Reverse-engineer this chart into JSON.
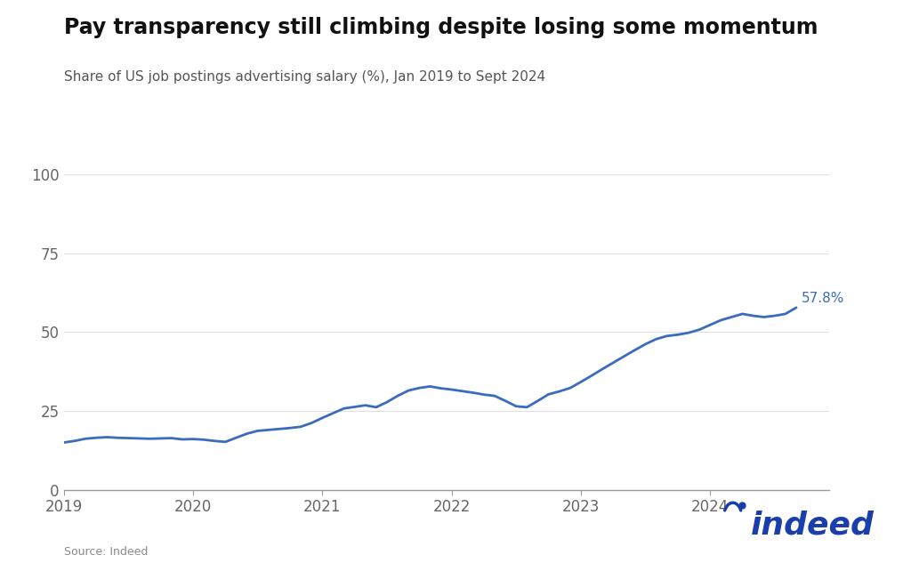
{
  "title": "Pay transparency still climbing despite losing some momentum",
  "subtitle": "Share of US job postings advertising salary (%), Jan 2019 to Sept 2024",
  "source": "Source: Indeed",
  "line_color": "#3a6bbf",
  "bg_color": "#ffffff",
  "annotation_label": "57.8%",
  "annotation_color": "#3a6bbf",
  "xlim_start": 2019.0,
  "xlim_end": 2024.92,
  "ylim": [
    0,
    100
  ],
  "yticks": [
    0,
    25,
    50,
    75,
    100
  ],
  "xticks": [
    2019,
    2020,
    2021,
    2022,
    2023,
    2024
  ],
  "tick_color": "#666666",
  "spine_color": "#999999",
  "grid_color": "#e0e0e0",
  "data": [
    [
      2019.0,
      15.0
    ],
    [
      2019.083,
      15.5
    ],
    [
      2019.167,
      16.2
    ],
    [
      2019.25,
      16.5
    ],
    [
      2019.333,
      16.7
    ],
    [
      2019.417,
      16.5
    ],
    [
      2019.5,
      16.4
    ],
    [
      2019.583,
      16.3
    ],
    [
      2019.667,
      16.2
    ],
    [
      2019.75,
      16.3
    ],
    [
      2019.833,
      16.4
    ],
    [
      2019.917,
      16.0
    ],
    [
      2020.0,
      16.1
    ],
    [
      2020.083,
      15.9
    ],
    [
      2020.167,
      15.5
    ],
    [
      2020.25,
      15.2
    ],
    [
      2020.333,
      16.5
    ],
    [
      2020.417,
      17.8
    ],
    [
      2020.5,
      18.7
    ],
    [
      2020.583,
      19.0
    ],
    [
      2020.667,
      19.3
    ],
    [
      2020.75,
      19.6
    ],
    [
      2020.833,
      20.0
    ],
    [
      2020.917,
      21.2
    ],
    [
      2021.0,
      22.8
    ],
    [
      2021.083,
      24.3
    ],
    [
      2021.167,
      25.8
    ],
    [
      2021.25,
      26.3
    ],
    [
      2021.333,
      26.8
    ],
    [
      2021.417,
      26.2
    ],
    [
      2021.5,
      27.8
    ],
    [
      2021.583,
      29.8
    ],
    [
      2021.667,
      31.5
    ],
    [
      2021.75,
      32.3
    ],
    [
      2021.833,
      32.8
    ],
    [
      2021.917,
      32.2
    ],
    [
      2022.0,
      31.8
    ],
    [
      2022.083,
      31.3
    ],
    [
      2022.167,
      30.8
    ],
    [
      2022.25,
      30.2
    ],
    [
      2022.333,
      29.8
    ],
    [
      2022.417,
      28.2
    ],
    [
      2022.5,
      26.5
    ],
    [
      2022.583,
      26.2
    ],
    [
      2022.667,
      28.2
    ],
    [
      2022.75,
      30.3
    ],
    [
      2022.833,
      31.2
    ],
    [
      2022.917,
      32.3
    ],
    [
      2023.0,
      34.2
    ],
    [
      2023.083,
      36.2
    ],
    [
      2023.167,
      38.3
    ],
    [
      2023.25,
      40.3
    ],
    [
      2023.333,
      42.3
    ],
    [
      2023.417,
      44.3
    ],
    [
      2023.5,
      46.2
    ],
    [
      2023.583,
      47.8
    ],
    [
      2023.667,
      48.8
    ],
    [
      2023.75,
      49.2
    ],
    [
      2023.833,
      49.8
    ],
    [
      2023.917,
      50.8
    ],
    [
      2024.0,
      52.3
    ],
    [
      2024.083,
      53.8
    ],
    [
      2024.167,
      54.8
    ],
    [
      2024.25,
      55.8
    ],
    [
      2024.333,
      55.2
    ],
    [
      2024.417,
      54.8
    ],
    [
      2024.5,
      55.2
    ],
    [
      2024.583,
      55.8
    ],
    [
      2024.667,
      57.8
    ]
  ]
}
